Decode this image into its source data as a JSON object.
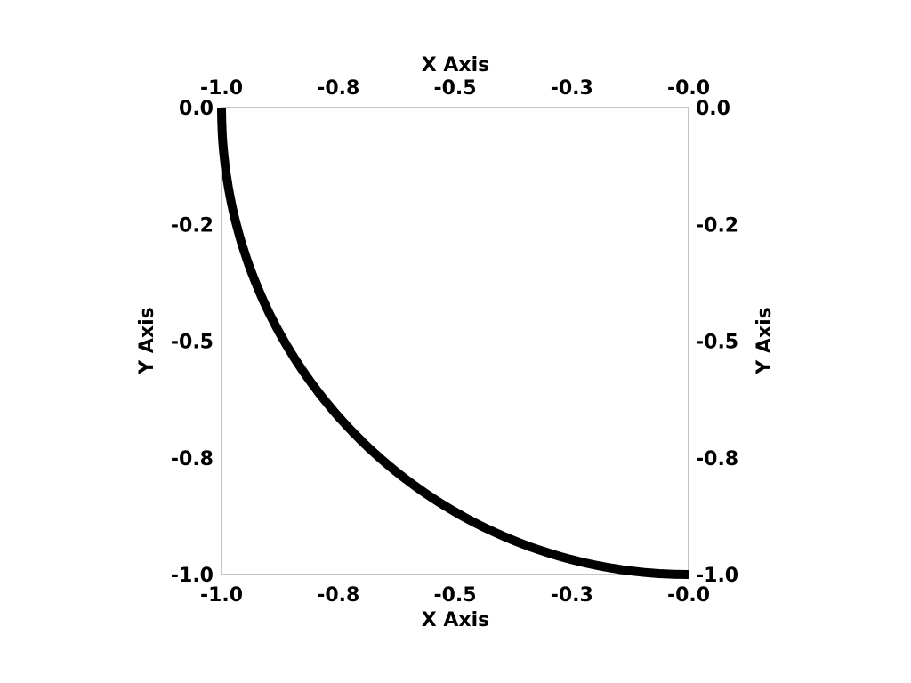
{
  "chart_data": {
    "type": "line",
    "xlabel": "X Axis",
    "ylabel": "Y Axis",
    "xlim": [
      -1.0,
      0.0
    ],
    "ylim": [
      -1.0,
      0.0
    ],
    "x_ticks": [
      -1.0,
      -0.75,
      -0.5,
      -0.25,
      0.0
    ],
    "x_tick_labels": [
      "-1.0",
      "-0.8",
      "-0.5",
      "-0.3",
      "-0.0"
    ],
    "y_ticks": [
      0.0,
      -0.25,
      -0.5,
      -0.75,
      -1.0
    ],
    "y_tick_labels": [
      "0.0",
      "-0.2",
      "-0.5",
      "-0.8",
      "-1.0"
    ],
    "grid": false,
    "series": [
      {
        "shape": "quarter circle arc, radius 1, centered at origin",
        "from": [
          -1.0,
          0.0
        ],
        "to": [
          0.0,
          -1.0
        ],
        "color": "#000000"
      }
    ]
  }
}
